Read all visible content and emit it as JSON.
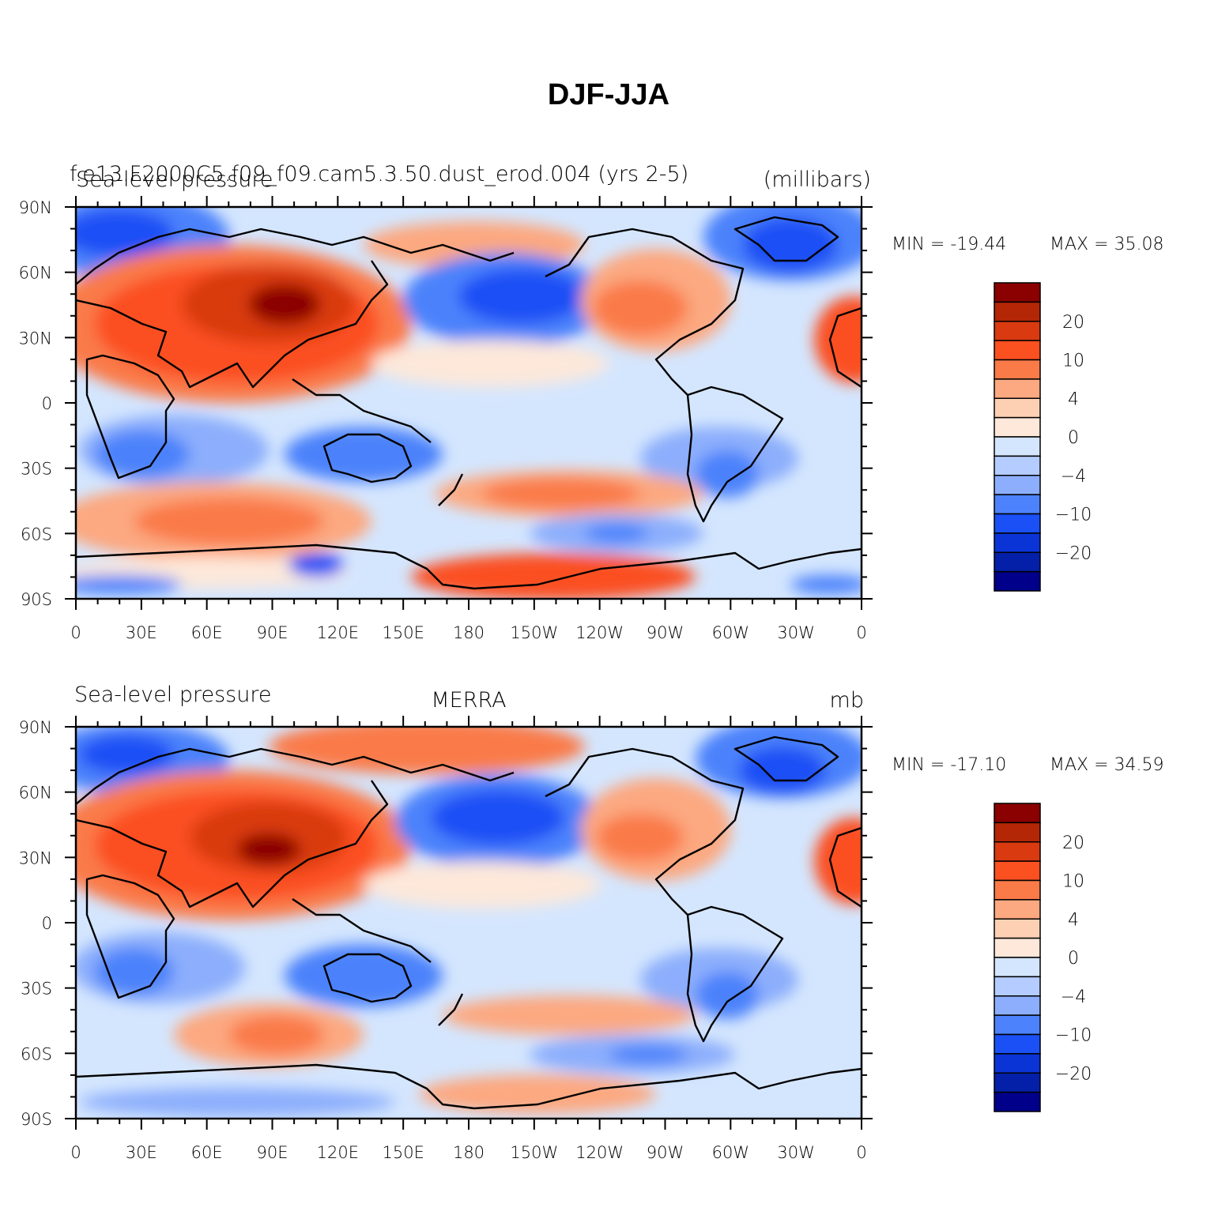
{
  "figure": {
    "title": "DJF-JJA"
  },
  "chart_data": [
    {
      "type": "heatmap",
      "panel": "top",
      "left_title_line1": "f.e13.F2000C5.f09_f09.cam5.3.50.dust_erod.004 (yrs 2-5)",
      "left_title_line2": "Sea-level pressure",
      "center_title": "",
      "right_title": "(millibars)",
      "stats": {
        "min_label": "MIN = -19.44",
        "max_label": "MAX =   35.08",
        "min": -19.44,
        "max": 35.08
      },
      "x_ticks": [
        "0",
        "30E",
        "60E",
        "90E",
        "120E",
        "150E",
        "180",
        "150W",
        "120W",
        "90W",
        "60W",
        "30W",
        "0"
      ],
      "y_ticks": [
        "90N",
        "60N",
        "30N",
        "0",
        "30S",
        "60S",
        "90S"
      ],
      "xlim": [
        0,
        360
      ],
      "ylim": [
        -90,
        90
      ]
    },
    {
      "type": "heatmap",
      "panel": "bottom",
      "left_title_line1": "",
      "left_title_line2": "Sea-level pressure",
      "center_title": "MERRA",
      "right_title": "mb",
      "stats": {
        "min_label": "MIN = -17.10",
        "max_label": "MAX =   34.59",
        "min": -17.1,
        "max": 34.59
      },
      "x_ticks": [
        "0",
        "30E",
        "60E",
        "90E",
        "120E",
        "150E",
        "180",
        "150W",
        "120W",
        "90W",
        "60W",
        "30W",
        "0"
      ],
      "y_ticks": [
        "90N",
        "60N",
        "30N",
        "0",
        "30S",
        "60S",
        "90S"
      ],
      "xlim": [
        0,
        360
      ],
      "ylim": [
        -90,
        90
      ]
    }
  ],
  "colorbar": {
    "colors": [
      "#8b0000",
      "#b32606",
      "#d93a10",
      "#fb5020",
      "#fa7a48",
      "#fca880",
      "#fdd0b4",
      "#fde8da",
      "#d4e6fe",
      "#b4ccff",
      "#8caefc",
      "#4c82fb",
      "#1a50f5",
      "#0a34d6",
      "#0420a8",
      "#00008a"
    ],
    "labels": [
      {
        "text": "20",
        "boundary": 2
      },
      {
        "text": "10",
        "boundary": 4
      },
      {
        "text": "4",
        "boundary": 6
      },
      {
        "text": "0",
        "boundary": 8
      },
      {
        "text": "−4",
        "boundary": 10
      },
      {
        "text": "−10",
        "boundary": 12
      },
      {
        "text": "−20",
        "boundary": 14
      }
    ]
  }
}
